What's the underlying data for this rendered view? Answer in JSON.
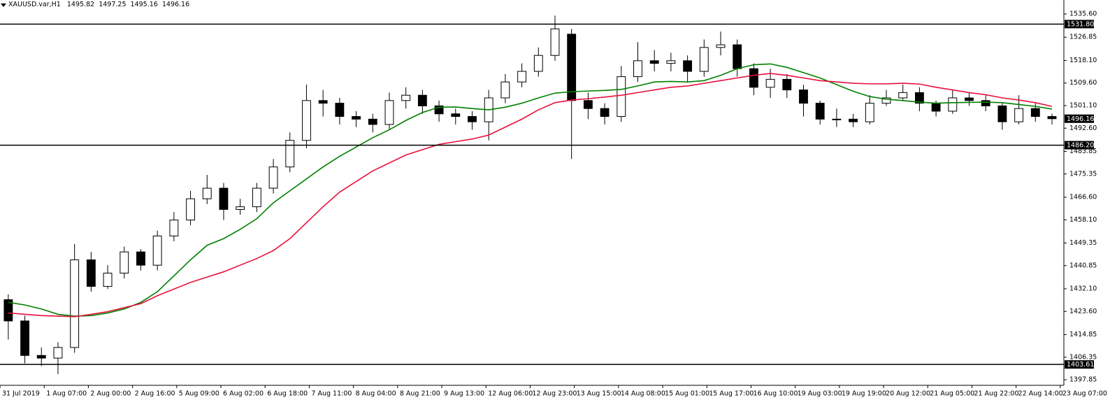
{
  "chart_data": {
    "type": "candlestick",
    "symbol": "XAUUSD.var,H1",
    "header_quote": {
      "open": 1495.82,
      "high": 1497.25,
      "low": 1495.16,
      "close": 1496.16
    },
    "xlim": [
      0,
      385.3
    ],
    "ylim": [
      1395.75,
      1540.87
    ],
    "yticks": [
      {
        "value": 1535.6,
        "label": "1535.60"
      },
      1526.85,
      {
        "value": 1518.1,
        "label": "1518.10"
      },
      {
        "value": 1509.6,
        "label": "1509.60"
      },
      {
        "value": 1501.1,
        "label": "1501.10"
      },
      {
        "value": 1492.6,
        "label": "1492.60"
      },
      1483.85,
      1475.35,
      {
        "value": 1466.6,
        "label": "1466.60"
      },
      {
        "value": 1458.1,
        "label": "1458.10"
      },
      1449.35,
      1440.85,
      {
        "value": 1432.1,
        "label": "1432.10"
      },
      {
        "value": 1423.6,
        "label": "1423.60"
      },
      1414.85,
      1406.35,
      1397.85
    ],
    "xticks": [
      {
        "value": 0,
        "label": "31 Jul 2019"
      },
      {
        "value": 16,
        "label": "1 Aug 07:00"
      },
      {
        "value": 32,
        "label": "2 Aug 00:00"
      },
      {
        "value": 48,
        "label": "2 Aug 16:00"
      },
      {
        "value": 64,
        "label": "5 Aug 09:00"
      },
      {
        "value": 80,
        "label": "6 Aug 02:00"
      },
      {
        "value": 96,
        "label": "6 Aug 18:00"
      },
      {
        "value": 112,
        "label": "7 Aug 11:00"
      },
      {
        "value": 128,
        "label": "8 Aug 04:00"
      },
      {
        "value": 144,
        "label": "8 Aug 21:00"
      },
      {
        "value": 160,
        "label": "9 Aug 13:00"
      },
      {
        "value": 176,
        "label": "12 Aug 06:00"
      },
      {
        "value": 192,
        "label": "12 Aug 23:00"
      },
      {
        "value": 208,
        "label": "13 Aug 15:00"
      },
      {
        "value": 224,
        "label": "14 Aug 08:00"
      },
      {
        "value": 240,
        "label": "15 Aug 01:00"
      },
      {
        "value": 256,
        "label": "15 Aug 17:00"
      },
      {
        "value": 272,
        "label": "16 Aug 10:00"
      },
      {
        "value": 288,
        "label": "19 Aug 03:00"
      },
      {
        "value": 304,
        "label": "19 Aug 19:00"
      },
      {
        "value": 320,
        "label": "20 Aug 12:00"
      },
      {
        "value": 336,
        "label": "21 Aug 05:00"
      },
      {
        "value": 352,
        "label": "21 Aug 22:00"
      },
      {
        "value": 368,
        "label": "22 Aug 14:00"
      },
      {
        "value": 384,
        "label": "23 Aug 07:00"
      }
    ],
    "levels": [
      {
        "value": 1531.8,
        "label": "1531.80"
      },
      {
        "value": 1486.2,
        "label": "1486.20"
      },
      1403.61
    ],
    "current_price": 1496.16,
    "bull_color": "#ffffff",
    "bear_color": "#000000",
    "x": [
      3,
      9,
      15,
      21,
      27,
      33,
      39,
      45,
      51,
      57,
      63,
      69,
      75,
      81,
      87,
      93,
      99,
      105,
      111,
      117,
      123,
      129,
      135,
      141,
      147,
      153,
      159,
      165,
      171,
      177,
      183,
      189,
      195,
      201,
      207,
      213,
      219,
      225,
      231,
      237,
      243,
      249,
      255,
      261,
      267,
      273,
      279,
      285,
      291,
      297,
      303,
      309,
      315,
      321,
      327,
      333,
      339,
      345,
      351,
      357,
      363,
      369,
      375,
      381
    ],
    "open": [
      1428,
      1420,
      1407,
      1406,
      1410,
      1443,
      1433,
      1438,
      1446,
      1441,
      1452,
      1458,
      1466,
      1470,
      1462,
      1463,
      1470,
      1478,
      1488,
      1503,
      1502,
      1497,
      1496,
      1494,
      1503,
      1505,
      1501,
      1498,
      1497,
      1495,
      1504,
      1510,
      1514,
      1520,
      1528,
      1503,
      1500,
      1497,
      1512,
      1518,
      1517,
      1518,
      1514,
      1523,
      1524,
      1515,
      1508,
      1511,
      1507,
      1502,
      1496,
      1496,
      1495,
      1502,
      1504,
      1506,
      1502,
      1499,
      1504,
      1503,
      1501,
      1495,
      1500,
      1497
    ],
    "high": [
      1430,
      1422,
      1410,
      1412,
      1449,
      1446,
      1441,
      1448,
      1447,
      1454,
      1461,
      1469,
      1475,
      1472,
      1466,
      1472,
      1481,
      1491,
      1509,
      1507,
      1504,
      1499,
      1498,
      1506,
      1508,
      1507,
      1503,
      1500,
      1499,
      1507,
      1513,
      1517,
      1523,
      1535,
      1530,
      1506,
      1502,
      1516,
      1525,
      1522,
      1521,
      1520,
      1526,
      1529,
      1526,
      1517,
      1515,
      1513,
      1509,
      1503,
      1500,
      1498,
      1505,
      1507,
      1509,
      1508,
      1503,
      1507,
      1506,
      1505,
      1502,
      1505,
      1502,
      1498
    ],
    "low": [
      1413,
      1404,
      1403,
      1400,
      1408,
      1431,
      1432,
      1436,
      1439,
      1439,
      1450,
      1456,
      1464,
      1458,
      1460,
      1461,
      1468,
      1476,
      1485,
      1497,
      1494,
      1493,
      1491,
      1492,
      1500,
      1498,
      1495,
      1494,
      1492,
      1488,
      1502,
      1508,
      1512,
      1518,
      1481,
      1496,
      1494,
      1495,
      1510,
      1514,
      1514,
      1510,
      1512,
      1520,
      1512,
      1505,
      1504,
      1504,
      1497,
      1494,
      1493,
      1493,
      1494,
      1501,
      1503,
      1499,
      1497,
      1498,
      1501,
      1499,
      1492,
      1494,
      1495,
      1494
    ],
    "close": [
      1420,
      1407,
      1406,
      1410,
      1443,
      1433,
      1438,
      1446,
      1441,
      1452,
      1458,
      1466,
      1470,
      1462,
      1463,
      1470,
      1478,
      1488,
      1503,
      1502,
      1497,
      1496,
      1494,
      1503,
      1505,
      1501,
      1498,
      1497,
      1495,
      1504,
      1510,
      1514,
      1520,
      1530,
      1503,
      1500,
      1497,
      1512,
      1518,
      1517,
      1518,
      1514,
      1523,
      1524,
      1515,
      1508,
      1511,
      1507,
      1502,
      1496,
      1496,
      1495,
      1502,
      1504,
      1506,
      1502,
      1499,
      1504,
      1503,
      1501,
      1495,
      1500,
      1497,
      1496.16
    ],
    "moving_averages": [
      {
        "color": "#008000",
        "values": [
          1427,
          1426,
          1424.5,
          1422.5,
          1421.8,
          1422,
          1423,
          1424.5,
          1427,
          1431,
          1437,
          1443,
          1448.5,
          1451,
          1454.5,
          1458.5,
          1464.5,
          1469,
          1473.5,
          1478,
          1482,
          1485.5,
          1489,
          1492,
          1495.5,
          1498.5,
          1500.5,
          1500.6,
          1500,
          1499.5,
          1500.5,
          1502,
          1504,
          1505.8,
          1506.3,
          1506.6,
          1506.8,
          1507.2,
          1508.5,
          1510,
          1510.2,
          1510,
          1510.5,
          1512.5,
          1515,
          1516.5,
          1516.8,
          1515.5,
          1513.5,
          1511.5,
          1509,
          1506.5,
          1504.5,
          1503.5,
          1503,
          1502.4,
          1502,
          1502.2,
          1502.3,
          1502.4,
          1502.2,
          1501.5,
          1500.8,
          1499.8
        ]
      },
      {
        "color": "#e8103c",
        "values": [
          1423,
          1422.5,
          1422,
          1421.8,
          1421.6,
          1422.5,
          1423.5,
          1425,
          1426.5,
          1429.5,
          1432,
          1434.5,
          1436.5,
          1438.5,
          1441,
          1443.5,
          1446.5,
          1451,
          1457,
          1463,
          1468.5,
          1472.5,
          1476.5,
          1479.5,
          1482.5,
          1484.5,
          1486.5,
          1487.5,
          1488.5,
          1490,
          1493,
          1496,
          1499.5,
          1502.2,
          1503.2,
          1503.7,
          1504.3,
          1505,
          1506,
          1507,
          1508,
          1508.5,
          1509.5,
          1510.5,
          1511.5,
          1512.5,
          1513.2,
          1512.5,
          1511.5,
          1510.5,
          1510,
          1509.5,
          1509.3,
          1509.3,
          1509.5,
          1509.2,
          1508,
          1507,
          1506,
          1505.2,
          1504,
          1503.2,
          1502.2,
          1500.8
        ]
      }
    ]
  }
}
